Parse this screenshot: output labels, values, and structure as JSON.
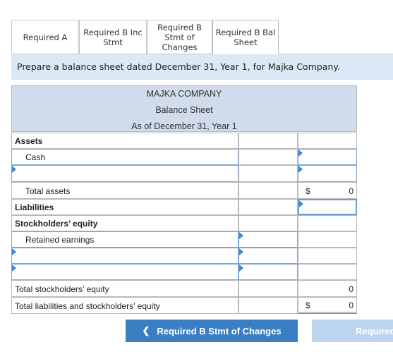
{
  "tabs": [
    {
      "label": "Required A"
    },
    {
      "label": "Required B Inc Stmt"
    },
    {
      "label": "Required B Stmt of Changes"
    },
    {
      "label": "Required B Bal Sheet"
    }
  ],
  "instruction": "Prepare a balance sheet dated December 31, Year 1, for Majka Company.",
  "sheet": {
    "company": "MAJKA COMPANY",
    "title": "Balance Sheet",
    "date": "As of December 31, Year 1",
    "assets_label": "Assets",
    "cash_label": "Cash",
    "total_assets_label": "Total assets",
    "total_assets_dollar": "$",
    "total_assets_value": "0",
    "liabilities_label": "Liabilities",
    "equity_label": "Stockholders’ equity",
    "retained_earnings_label": "Retained earnings",
    "total_equity_label": "Total stockholders’ equity",
    "total_equity_value": "0",
    "total_liab_equity_label": "Total liabilities and stockholders’ equity",
    "total_liab_equity_dollar": "$",
    "total_liab_equity_value": "0"
  },
  "nav": {
    "prev_label": "Required B Stmt of Changes",
    "prev_icon": "chevron-left-icon",
    "next_label": "Required"
  }
}
